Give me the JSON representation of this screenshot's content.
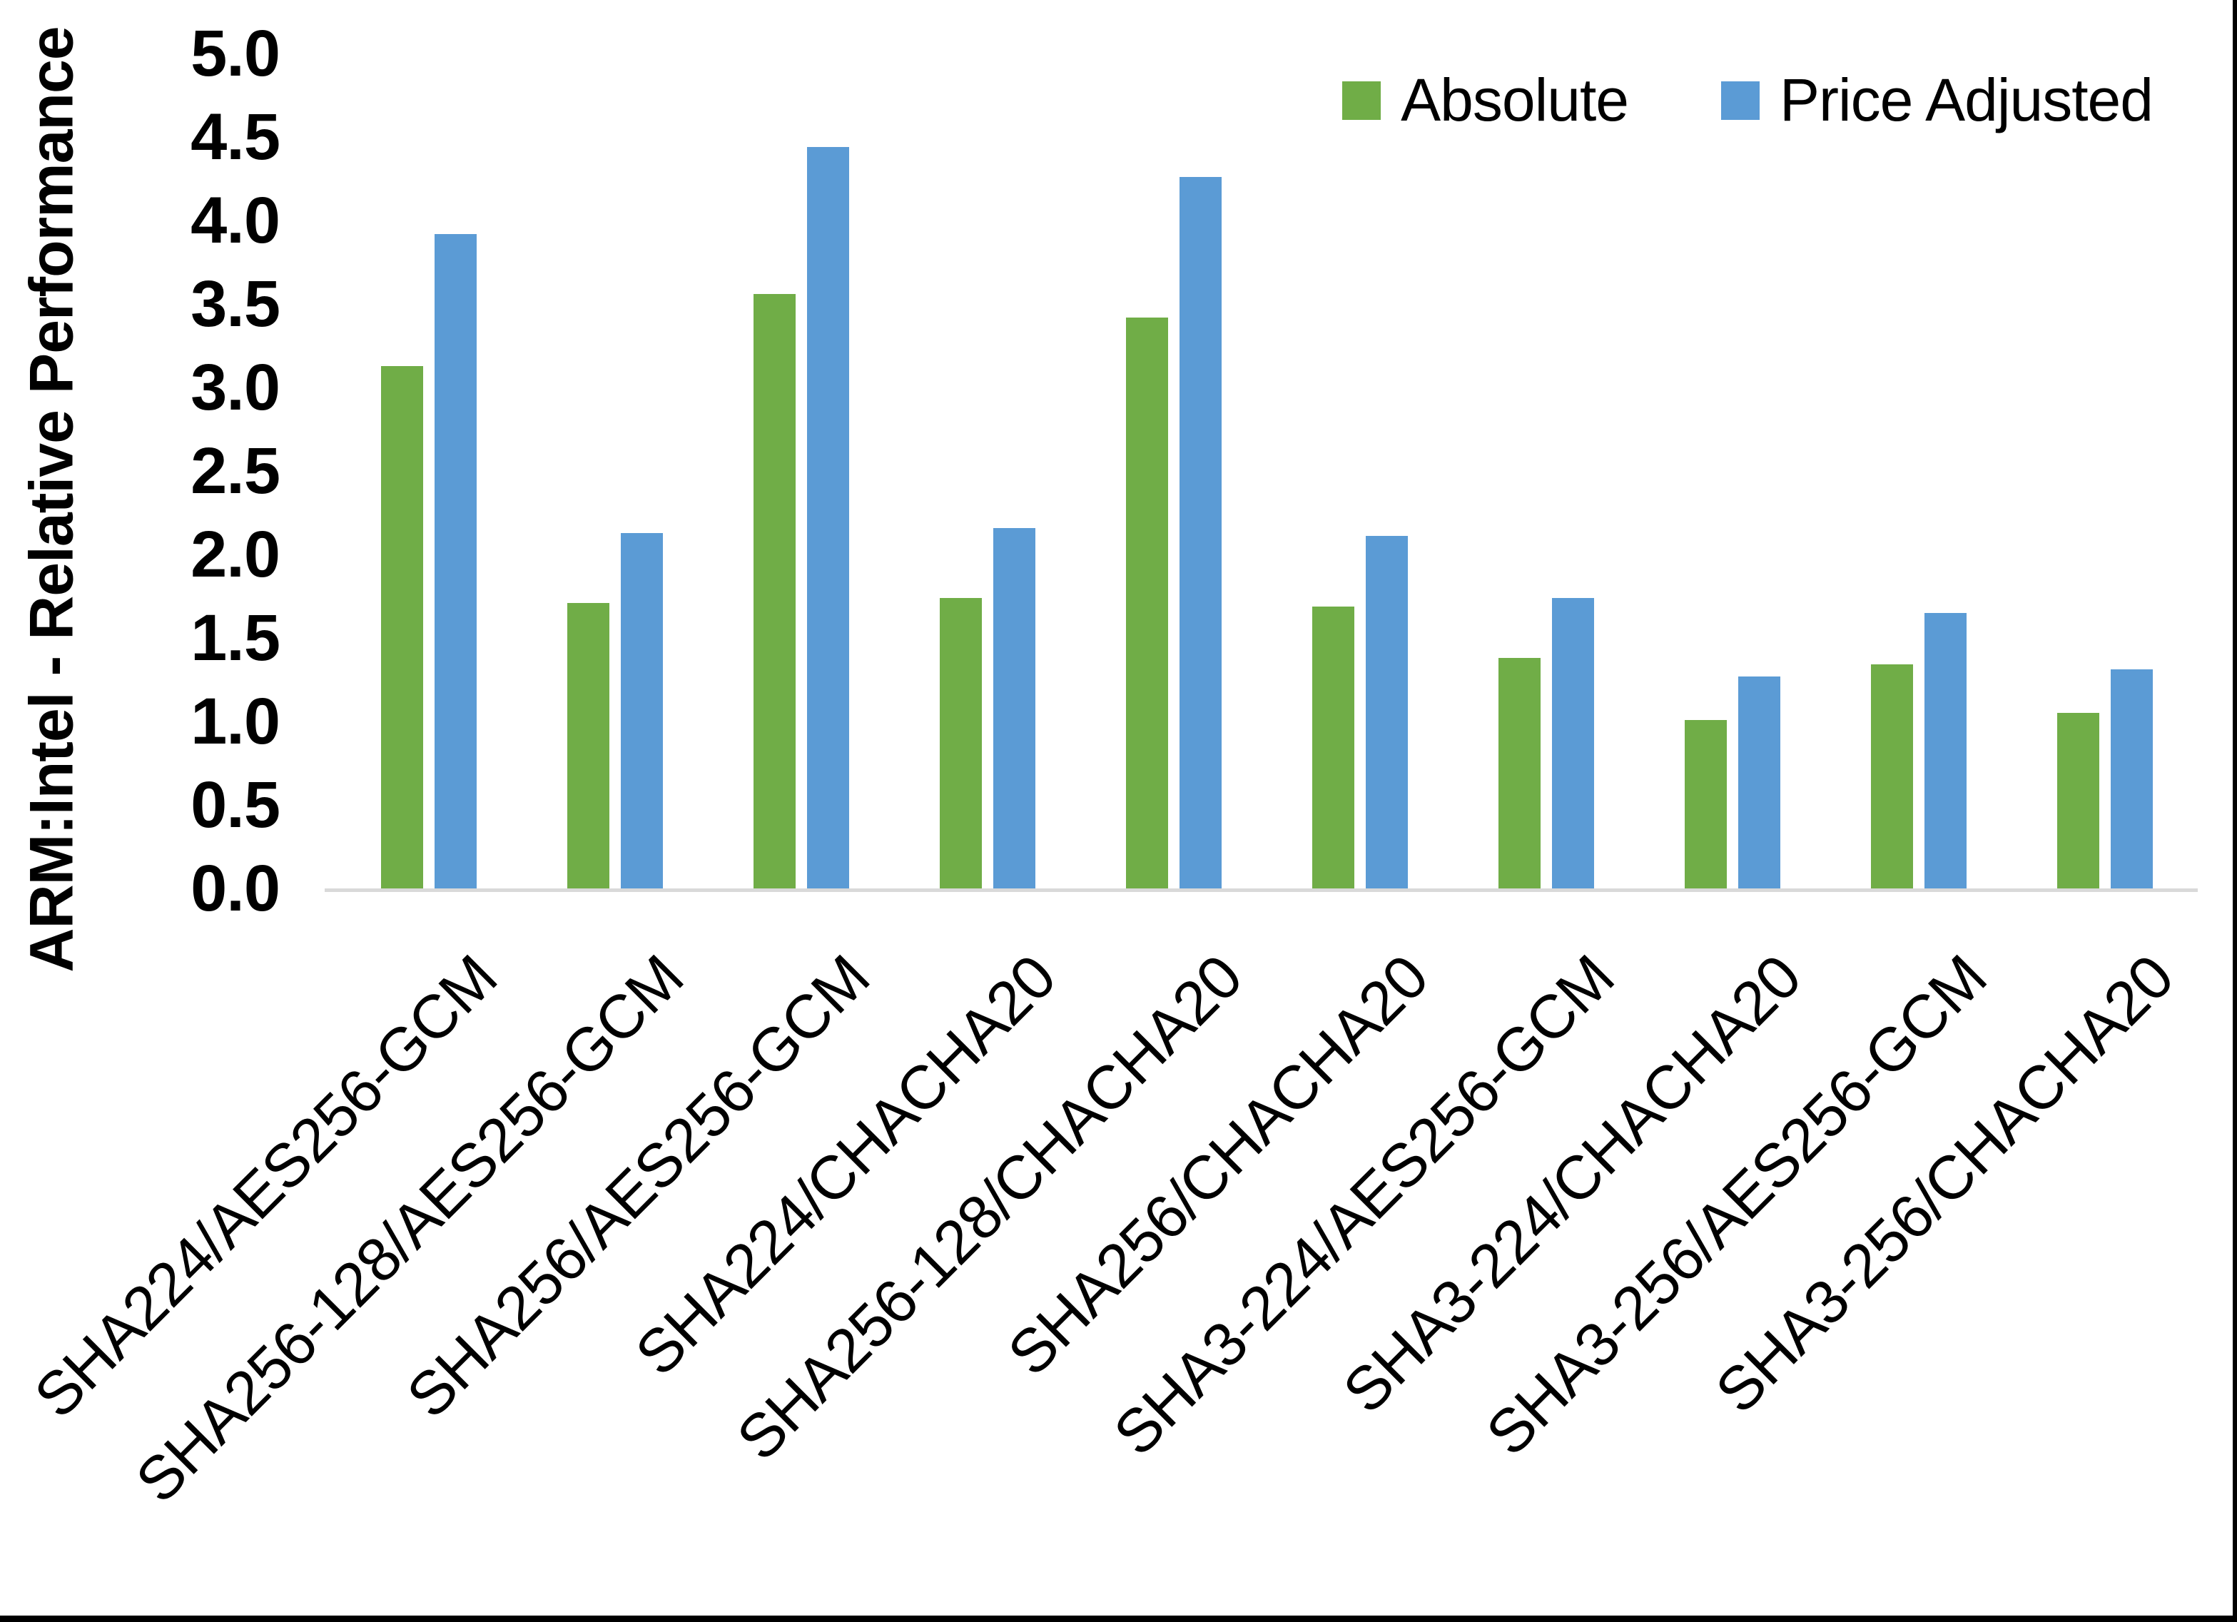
{
  "chart_data": {
    "type": "bar",
    "title": "",
    "xlabel": "",
    "ylabel": "ARM:Intel - Relative Performance",
    "ylim": [
      0,
      5
    ],
    "ytick_step": 0.5,
    "ytick_labels": [
      "0.0",
      "0.5",
      "1.0",
      "1.5",
      "2.0",
      "2.5",
      "3.0",
      "3.5",
      "4.0",
      "4.5",
      "5.0"
    ],
    "grid": false,
    "legend_position": "top-right",
    "categories": [
      "SHA224/AES256-GCM",
      "SHA256-128/AES256-GCM",
      "SHA256/AES256-GCM",
      "SHA224/CHACHA20",
      "SHA256-128/CHACHA20",
      "SHA256/CHACHA20",
      "SHA3-224/AES256-GCM",
      "SHA3-224/CHACHA20",
      "SHA3-256/AES256-GCM",
      "SHA3-256/CHACHA20"
    ],
    "series": [
      {
        "name": "Absolute",
        "color": "#70AD47",
        "values": [
          3.13,
          1.71,
          3.56,
          1.74,
          3.42,
          1.69,
          1.38,
          1.01,
          1.34,
          1.05
        ]
      },
      {
        "name": "Price Adjusted",
        "color": "#5B9BD5",
        "values": [
          3.92,
          2.13,
          4.44,
          2.16,
          4.26,
          2.11,
          1.74,
          1.27,
          1.65,
          1.31
        ]
      }
    ],
    "frame_color": "#000000",
    "axis_line_color": "#d9d9d9",
    "text_color": "#000000"
  }
}
